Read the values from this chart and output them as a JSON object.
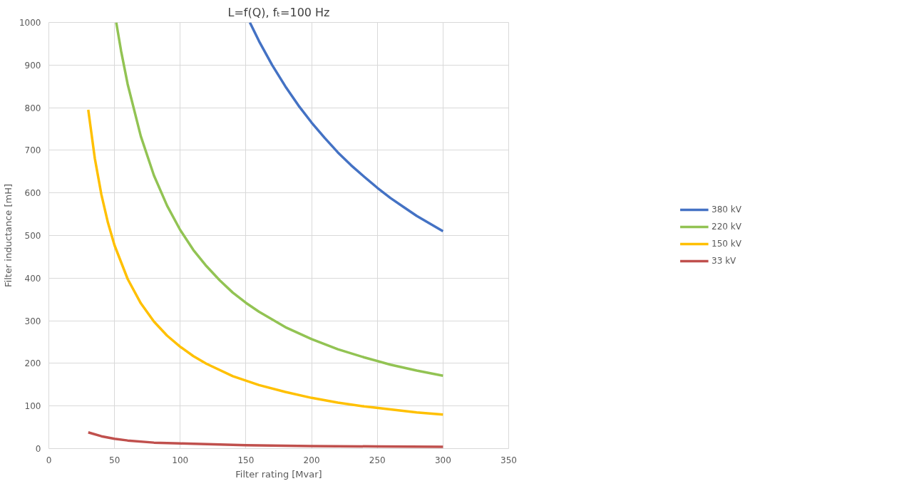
{
  "chart_data": {
    "type": "line",
    "title": "L=f(Q), fₜ=100 Hz",
    "xlabel": "Filter rating [Mvar]",
    "ylabel": "Filter inductance [mH]",
    "xlim": [
      0,
      350
    ],
    "xticks": [
      0,
      50,
      100,
      150,
      200,
      250,
      300,
      350
    ],
    "ylim": [
      0,
      1000
    ],
    "yticks": [
      0,
      100,
      200,
      300,
      400,
      500,
      600,
      700,
      800,
      900,
      1000
    ],
    "grid": true,
    "legend": "right",
    "marker": "none",
    "line_style": "solid",
    "series": [
      {
        "name": "380 kV",
        "color": "#4472c4",
        "x": [
          153,
          160,
          170,
          180,
          190,
          200,
          210,
          220,
          230,
          240,
          250,
          260,
          270,
          280,
          290,
          300
        ],
        "values": [
          1000,
          956,
          900,
          850,
          805,
          765,
          729,
          695,
          665,
          638,
          612,
          588,
          567,
          546,
          528,
          510
        ]
      },
      {
        "name": "220 kV",
        "color": "#92c353",
        "x": [
          51.3,
          55,
          60,
          70,
          80,
          90,
          100,
          110,
          120,
          130,
          140,
          150,
          160,
          180,
          200,
          220,
          240,
          260,
          280,
          300
        ],
        "values": [
          1000,
          933,
          855,
          733,
          641,
          570,
          513,
          466,
          428,
          395,
          366,
          342,
          321,
          285,
          257,
          233,
          214,
          197,
          183,
          171
        ]
      },
      {
        "name": "150 kV",
        "color": "#ffc000",
        "x": [
          30,
          35,
          40,
          45,
          50,
          60,
          70,
          80,
          90,
          100,
          110,
          120,
          140,
          160,
          180,
          200,
          220,
          240,
          260,
          280,
          300
        ],
        "values": [
          795,
          681,
          596,
          530,
          477,
          398,
          341,
          298,
          265,
          239,
          217,
          199,
          170,
          149,
          133,
          119,
          108,
          99,
          92,
          85,
          80
        ]
      },
      {
        "name": "33 kV",
        "color": "#c0504d",
        "x": [
          30,
          40,
          50,
          60,
          80,
          100,
          150,
          200,
          250,
          300
        ],
        "values": [
          38,
          29,
          23,
          19,
          14,
          12,
          8,
          6,
          5,
          4
        ]
      }
    ]
  }
}
